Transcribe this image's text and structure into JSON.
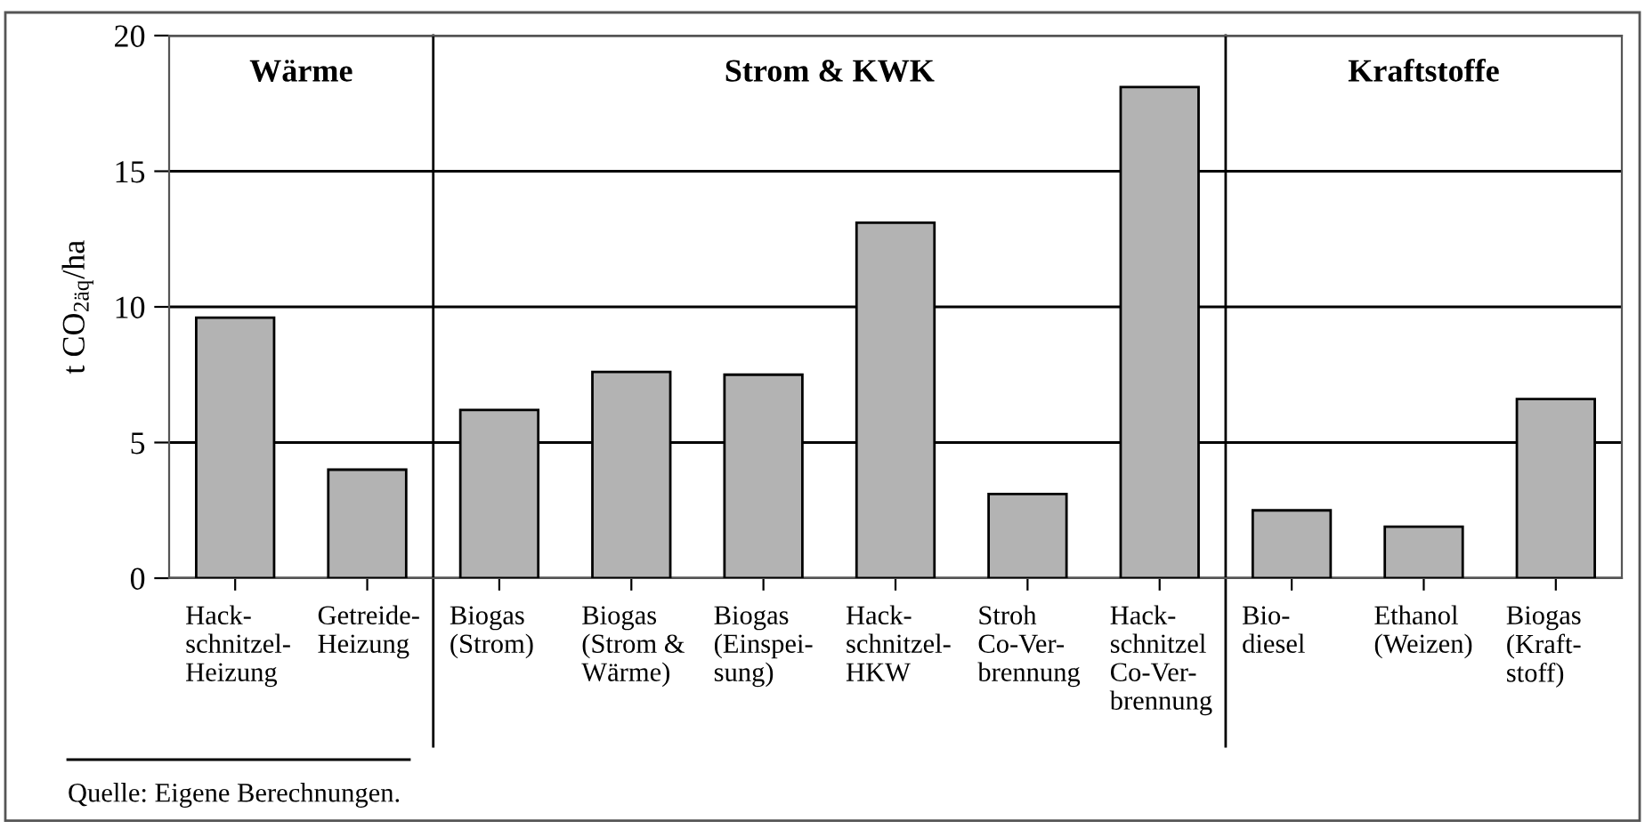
{
  "chart_data": {
    "type": "bar",
    "ylabel": "t CO$_{2äq}$/ha",
    "categories": [
      "Hack-\nschnitzel-\nHeizung",
      "Getreide-\nHeizung",
      "Biogas\n(Strom)",
      "Biogas\n(Strom &\nWärme)",
      "Biogas\n(Einspei-\nsung)",
      "Hack-\nschnitzel-\nHKW",
      "Stroh\nCo-Ver-\nbrennung",
      "Hack-\nschnitzel\nCo-Ver-\nbrennung",
      "Bio-\ndiesel",
      "Ethanol\n(Weizen)",
      "Biogas\n(Kraft-\nstoff)"
    ],
    "values": [
      9.6,
      4.0,
      6.2,
      7.6,
      7.5,
      13.1,
      3.1,
      18.1,
      2.5,
      1.9,
      6.6
    ],
    "color": "#b3b3b3",
    "ylim": [
      0,
      20
    ],
    "yticks": [
      0,
      5,
      10,
      15,
      20
    ],
    "grid": "y",
    "legend": false,
    "annotations": [
      "Wärme",
      "Strom & KWK",
      "Kraftstoffe",
      "Quelle: Eigene Berechnungen."
    ]
  }
}
